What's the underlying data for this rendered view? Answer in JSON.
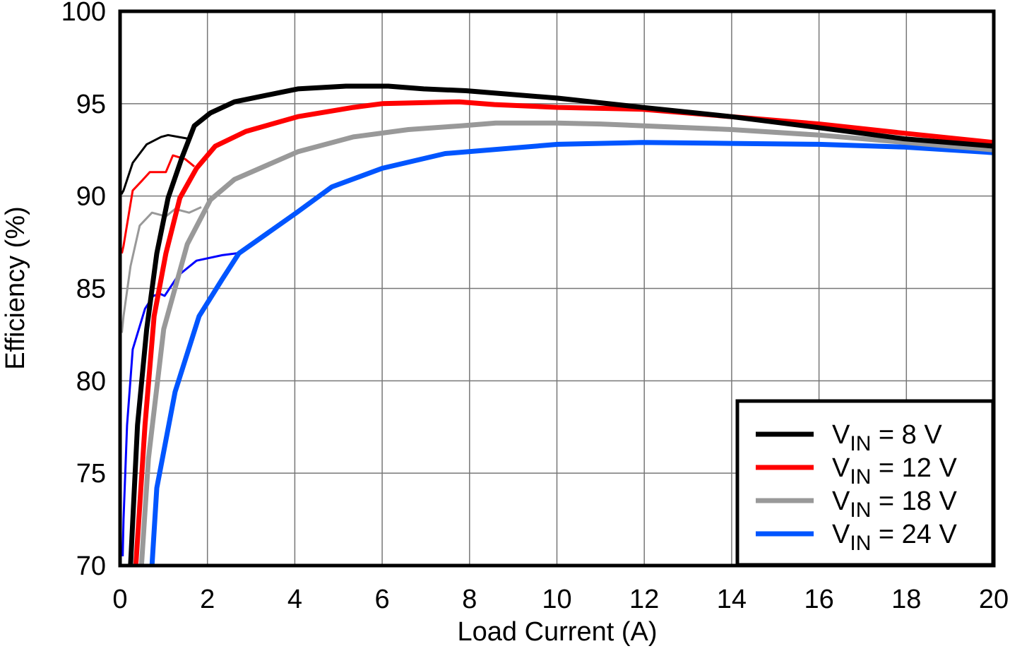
{
  "chart_data": {
    "type": "line",
    "title": "",
    "xlabel": "Load Current (A)",
    "ylabel": "Efficiency (%)",
    "xlim": [
      0,
      20
    ],
    "ylim": [
      70,
      100
    ],
    "xticks": [
      "0",
      "2",
      "4",
      "6",
      "8",
      "10",
      "12",
      "14",
      "16",
      "18",
      "20"
    ],
    "yticks": [
      "70",
      "75",
      "80",
      "85",
      "90",
      "95",
      "100"
    ],
    "grid": true,
    "legend_position": "bottom-right",
    "series": [
      {
        "name": "V_IN = 8 V",
        "legend": {
          "main": "V",
          "sub": "IN",
          "rest": " = 8 V"
        },
        "color": "#000000",
        "x": [
          0.24,
          0.4,
          0.61,
          0.84,
          1.1,
          1.42,
          1.7,
          2.07,
          2.62,
          3.23,
          4.07,
          5.17,
          6.14,
          6.95,
          7.92,
          10.02,
          11.96,
          13.99,
          16.0,
          17.95,
          20
        ],
        "y": [
          70,
          77.6,
          82.8,
          86.9,
          89.9,
          92.1,
          93.8,
          94.5,
          95.1,
          95.4,
          95.8,
          95.95,
          95.95,
          95.8,
          95.7,
          95.3,
          94.8,
          94.3,
          93.7,
          93.1,
          92.7
        ]
      },
      {
        "name": "V_IN = 12 V",
        "legend": {
          "main": "V",
          "sub": "IN",
          "rest": " = 12 V"
        },
        "color": "#ff0000",
        "x": [
          0.36,
          0.57,
          0.78,
          1.05,
          1.37,
          1.75,
          2.18,
          2.88,
          4.07,
          5.34,
          6.0,
          7.76,
          8.57,
          10.02,
          11.96,
          13.99,
          16.0,
          17.95,
          20
        ],
        "y": [
          70,
          77.6,
          83.5,
          86.9,
          89.9,
          91.5,
          92.7,
          93.5,
          94.3,
          94.8,
          95.0,
          95.1,
          94.95,
          94.8,
          94.7,
          94.3,
          93.9,
          93.4,
          92.9
        ]
      },
      {
        "name": "V_IN = 18 V",
        "legend": {
          "main": "V",
          "sub": "IN",
          "rest": " = 18 V"
        },
        "color": "#999999",
        "x": [
          0.49,
          0.65,
          1.0,
          1.54,
          2.07,
          2.62,
          4.07,
          5.34,
          6.6,
          7.8,
          8.6,
          10.0,
          11.0,
          12.0,
          14.0,
          16.0,
          18.0,
          20
        ],
        "y": [
          70,
          75.8,
          82.8,
          87.4,
          89.8,
          90.9,
          92.4,
          93.2,
          93.6,
          93.8,
          93.95,
          93.95,
          93.9,
          93.8,
          93.6,
          93.3,
          92.9,
          92.5
        ]
      },
      {
        "name": "V_IN = 24 V",
        "legend": {
          "main": "V",
          "sub": "IN",
          "rest": " = 24 V"
        },
        "color": "#0055ff",
        "x": [
          0.73,
          0.84,
          1.26,
          1.81,
          2.34,
          2.72,
          4.04,
          4.85,
          6.0,
          7.44,
          10.02,
          11.96,
          13.99,
          16.0,
          17.95,
          20
        ],
        "y": [
          70,
          74.2,
          79.4,
          83.5,
          85.5,
          86.9,
          89.1,
          90.5,
          91.5,
          92.3,
          92.8,
          92.9,
          92.85,
          92.8,
          92.65,
          92.35
        ]
      },
      {
        "color": "#000000",
        "thin": true,
        "x": [
          0.03,
          0.08,
          0.29,
          0.61,
          0.94,
          1.1,
          1.33,
          1.58
        ],
        "y": [
          90.1,
          90.3,
          91.8,
          92.8,
          93.2,
          93.3,
          93.2,
          93.1
        ]
      },
      {
        "color": "#ff0000",
        "thin": true,
        "x": [
          0.04,
          0.08,
          0.29,
          0.49,
          0.68,
          1.05,
          1.21,
          1.49,
          1.7
        ],
        "y": [
          86.9,
          87.3,
          90.3,
          90.8,
          91.3,
          91.3,
          92.2,
          92.0,
          91.6
        ]
      },
      {
        "color": "#999999",
        "thin": true,
        "x": [
          0.04,
          0.08,
          0.24,
          0.45,
          0.73,
          1.05,
          1.26,
          1.58,
          1.86
        ],
        "y": [
          82.6,
          83.5,
          86.2,
          88.4,
          89.1,
          88.9,
          89.3,
          89.1,
          89.4
        ]
      },
      {
        "color": "#0000ff",
        "thin": true,
        "x": [
          0.06,
          0.08,
          0.16,
          0.29,
          0.57,
          0.76,
          0.92,
          1.02,
          1.33,
          1.75,
          2.34,
          2.67
        ],
        "y": [
          70.5,
          72.5,
          77.6,
          81.7,
          83.9,
          84.6,
          84.7,
          84.6,
          85.7,
          86.5,
          86.8,
          86.9
        ]
      }
    ]
  }
}
